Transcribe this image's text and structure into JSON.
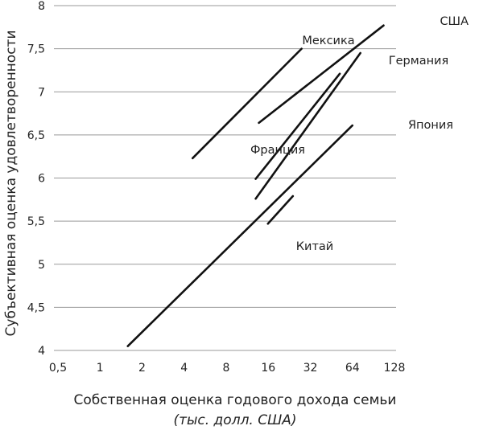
{
  "chart_data": {
    "type": "line",
    "title": "",
    "xlabel": "Собственная оценка годового дохода семьи",
    "xlabel_sub": "(тыс. долл. США)",
    "ylabel": "Субъективная оценка удовлетворенности",
    "x_scale": "log2",
    "xlim": [
      0.5,
      128
    ],
    "ylim": [
      4,
      8
    ],
    "x_ticks": [
      "0,5",
      "1",
      "2",
      "4",
      "8",
      "16",
      "32",
      "64",
      "128"
    ],
    "x_tick_values": [
      0.5,
      1,
      2,
      4,
      8,
      16,
      32,
      64,
      128
    ],
    "y_ticks": [
      "4",
      "4,5",
      "5",
      "5,5",
      "6",
      "6,5",
      "7",
      "7,5",
      "8"
    ],
    "y_tick_values": [
      4,
      4.5,
      5,
      5.5,
      6,
      6.5,
      7,
      7.5,
      8
    ],
    "grid": "horizontal",
    "line_color": "#111111",
    "grid_color": "#999999",
    "series": [
      {
        "name": "Мексика",
        "x": [
          4.6,
          27.7
        ],
        "y": [
          6.23,
          7.5
        ]
      },
      {
        "name": "США",
        "x": [
          13.7,
          107
        ],
        "y": [
          6.64,
          7.77
        ]
      },
      {
        "name": "Германия",
        "x": [
          13,
          73
        ],
        "y": [
          5.76,
          7.45
        ]
      },
      {
        "name": "Франция",
        "x": [
          13,
          52
        ],
        "y": [
          5.99,
          7.21
        ]
      },
      {
        "name": "Япония",
        "x": [
          1.58,
          64
        ],
        "y": [
          4.05,
          6.61
        ]
      },
      {
        "name": "Китай",
        "x": [
          15.9,
          24
        ],
        "y": [
          5.47,
          5.79
        ]
      }
    ]
  }
}
